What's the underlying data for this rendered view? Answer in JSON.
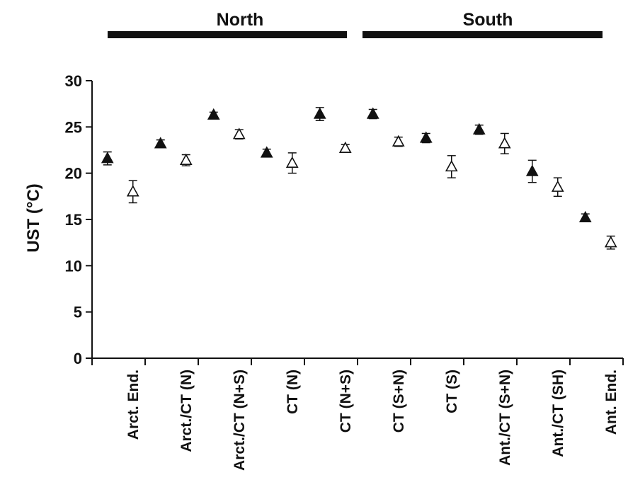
{
  "chart_data": {
    "type": "scatter",
    "ylabel": "UST (°C)",
    "ylim": [
      0,
      30
    ],
    "yticks": [
      0,
      5,
      10,
      15,
      20,
      25,
      30
    ],
    "grid": false,
    "groups": [
      {
        "label": "North"
      },
      {
        "label": "South"
      }
    ],
    "categories": [
      "Arct. End.",
      "Arct./CT (N)",
      "Arct./CT (N+S)",
      "CT (N)",
      "CT (N+S)",
      "CT (S+N)",
      "CT (S)",
      "Ant./CT (S+N)",
      "Ant./CT (SH)",
      "Ant. End."
    ],
    "series": [
      {
        "marker": "filled-triangle",
        "color": "#111111",
        "values": [
          21.6,
          23.2,
          26.3,
          22.2,
          26.4,
          26.4,
          23.8,
          24.7,
          20.2,
          15.2
        ],
        "errors": [
          0.7,
          0.4,
          0.3,
          0.4,
          0.7,
          0.5,
          0.5,
          0.5,
          1.2,
          0.4
        ]
      },
      {
        "marker": "open-triangle",
        "color": "#111111",
        "values": [
          18.0,
          21.4,
          24.2,
          21.1,
          22.7,
          23.4,
          20.7,
          23.2,
          18.5,
          12.5
        ],
        "errors": [
          1.2,
          0.6,
          0.5,
          1.1,
          0.4,
          0.5,
          1.2,
          1.1,
          1.0,
          0.7
        ]
      }
    ]
  }
}
